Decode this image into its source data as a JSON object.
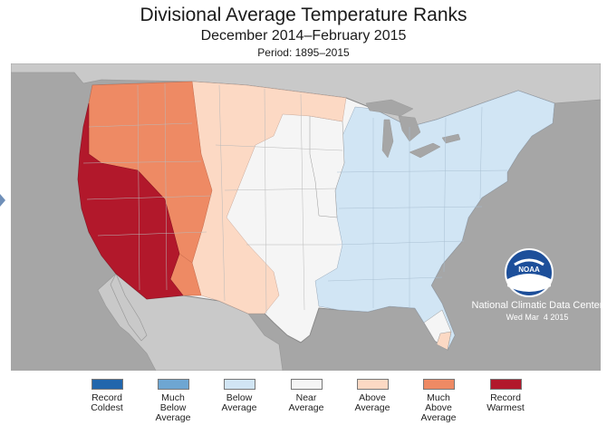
{
  "title": "Divisional Average Temperature Ranks",
  "subtitle": "December 2014–February 2015",
  "period": "Period: 1895–2015",
  "agency": {
    "logo_text": "NOAA",
    "center": "National Climatic Data Center",
    "date": "Wed Mar  4 2015"
  },
  "colors": {
    "record_coldest": "#2166ac",
    "much_below": "#6ea6d2",
    "below": "#d1e5f4",
    "near": "#f5f5f5",
    "above": "#fcd9c4",
    "much_above": "#ee8a64",
    "record_warmest": "#b2182b",
    "ocean": "#a6a6a6",
    "land_outside": "#c9c9c9",
    "border": "#9a9a9a"
  },
  "legend": [
    {
      "label": "Record\nColdest",
      "color": "#2166ac"
    },
    {
      "label": "Much\nBelow\nAverage",
      "color": "#6ea6d2"
    },
    {
      "label": "Below\nAverage",
      "color": "#d1e5f4"
    },
    {
      "label": "Near\nAverage",
      "color": "#f5f5f5"
    },
    {
      "label": "Above\nAverage",
      "color": "#fcd9c4"
    },
    {
      "label": "Much\nAbove\nAverage",
      "color": "#ee8a64"
    },
    {
      "label": "Record\nWarmest",
      "color": "#b2182b"
    }
  ]
}
